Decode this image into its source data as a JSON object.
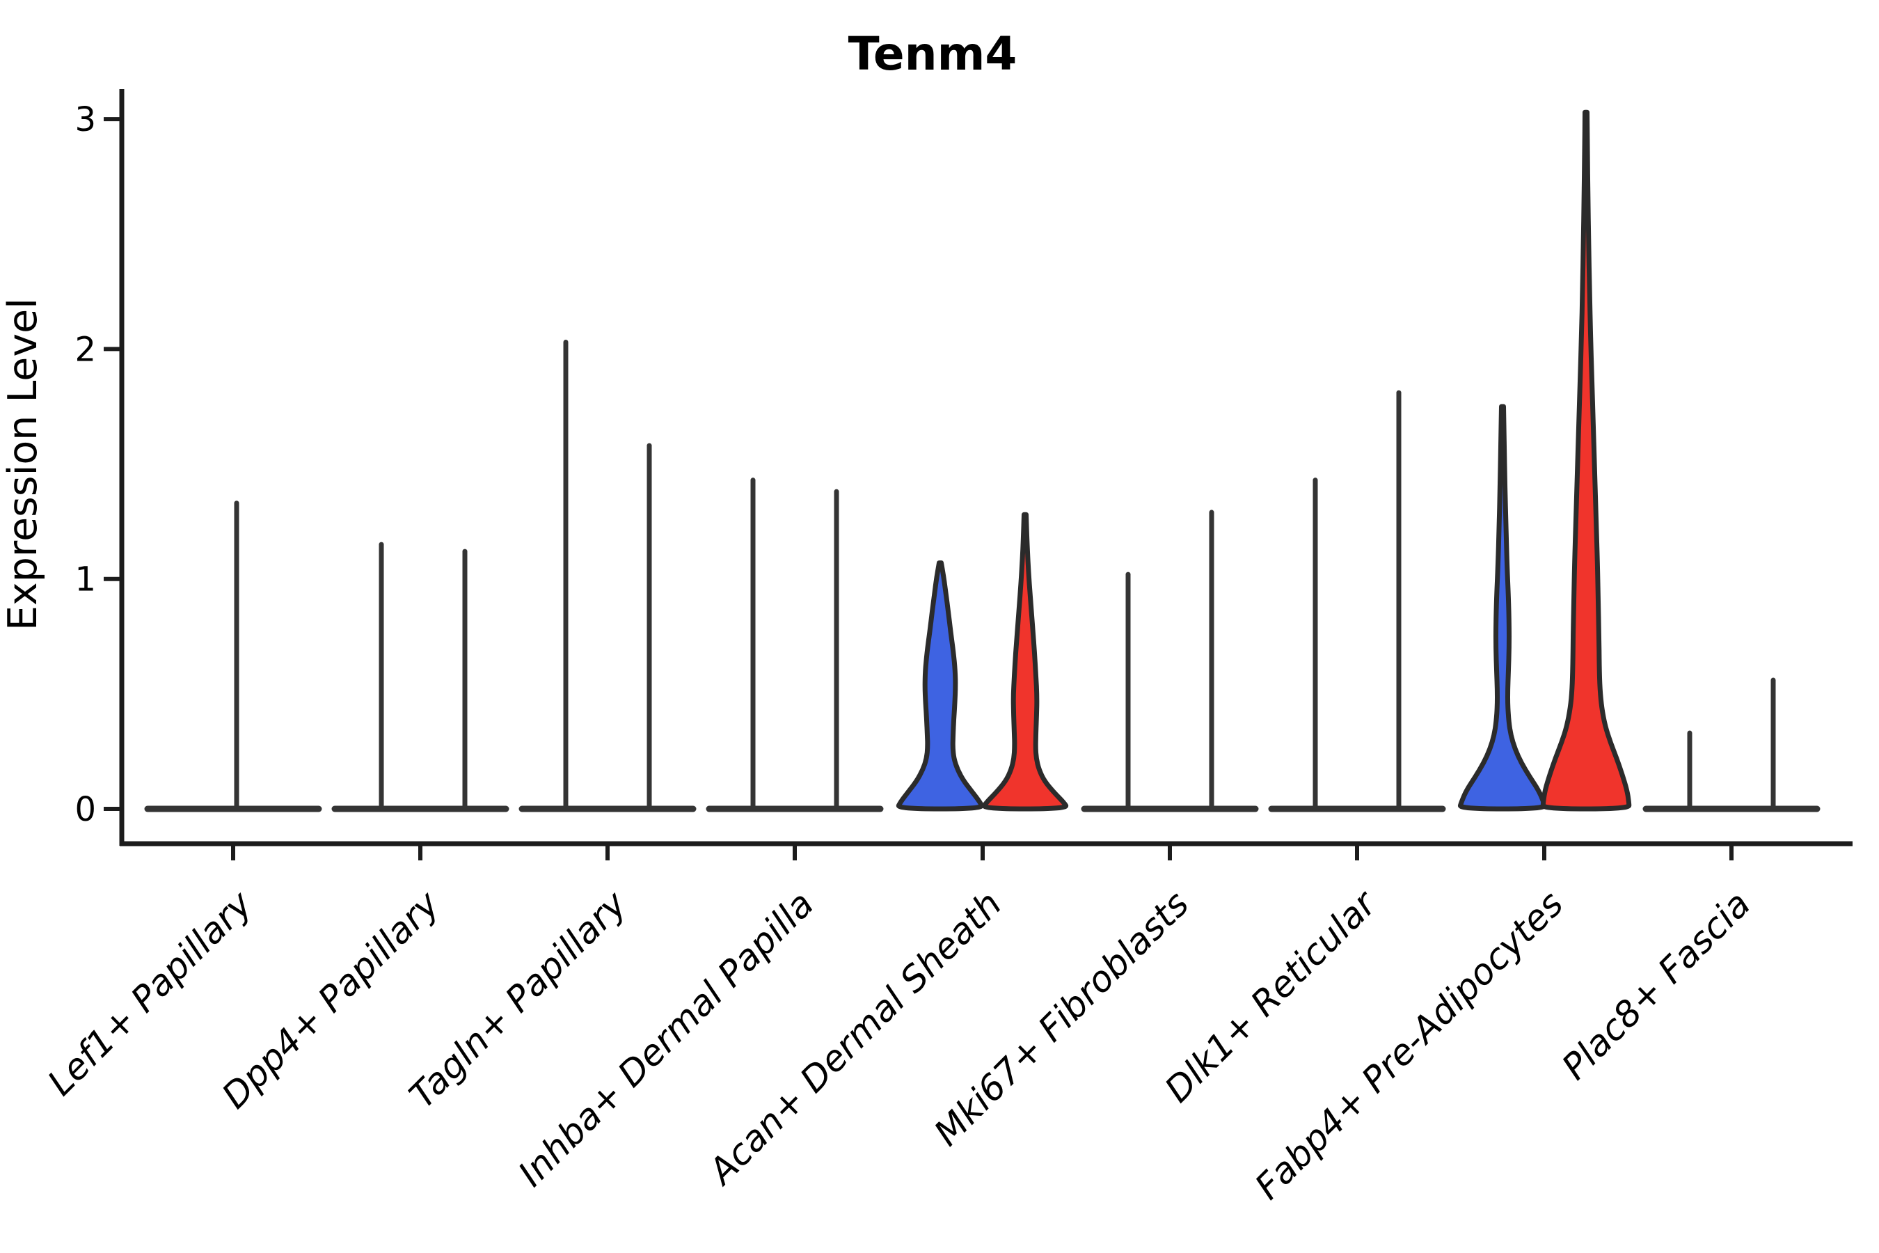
{
  "page": {
    "background": "#FFFFFF"
  },
  "chart_data": {
    "type": "violin",
    "title": "Tenm4",
    "ylabel": "Expression Level",
    "xlabel": "",
    "ylim": [
      0,
      3.2
    ],
    "yticks": [
      0,
      1,
      2,
      3
    ],
    "grid": false,
    "legend": "none",
    "split_colors": {
      "blue": "#3E63E2",
      "red": "#F0342C"
    },
    "categories": [
      {
        "label": "Lef1+ Papillary",
        "x": 335,
        "violins": [
          {
            "hue": "none",
            "x": 340,
            "max": 1.33,
            "filled": false
          }
        ]
      },
      {
        "label": "Dpp4+ Papillary",
        "x": 604,
        "violins": [
          {
            "hue": "blue",
            "x": 548,
            "max": 1.15,
            "filled": false
          },
          {
            "hue": "red",
            "x": 668,
            "max": 1.12,
            "filled": false
          }
        ]
      },
      {
        "label": "Tagln+ Papillary",
        "x": 873,
        "violins": [
          {
            "hue": "blue",
            "x": 813,
            "max": 2.03,
            "filled": false
          },
          {
            "hue": "red",
            "x": 933,
            "max": 1.58,
            "filled": false
          }
        ]
      },
      {
        "label": "Inhba+ Dermal Papilla",
        "x": 1142,
        "violins": [
          {
            "hue": "blue",
            "x": 1082,
            "max": 1.43,
            "filled": false
          },
          {
            "hue": "red",
            "x": 1202,
            "max": 1.38,
            "filled": false
          }
        ]
      },
      {
        "label": "Acan+ Dermal Sheath",
        "x": 1412,
        "violins": [
          {
            "hue": "blue",
            "x": 1351,
            "max": 1.07,
            "filled": true,
            "profile": [
              [
                1.07,
                1.5
              ],
              [
                1.01,
                5
              ],
              [
                0.94,
                8
              ],
              [
                0.86,
                11.5
              ],
              [
                0.77,
                15
              ],
              [
                0.68,
                19
              ],
              [
                0.6,
                21.5
              ],
              [
                0.53,
                22
              ],
              [
                0.46,
                21
              ],
              [
                0.39,
                19.5
              ],
              [
                0.32,
                18.5
              ],
              [
                0.27,
                18
              ],
              [
                0.22,
                19.5
              ],
              [
                0.17,
                25
              ],
              [
                0.12,
                34
              ],
              [
                0.07,
                47
              ],
              [
                0.03,
                57
              ],
              [
                0.0,
                62
              ]
            ]
          },
          {
            "hue": "red",
            "x": 1473,
            "max": 1.28,
            "filled": true,
            "profile": [
              [
                1.28,
                1.5
              ],
              [
                1.18,
                2.5
              ],
              [
                1.08,
                4
              ],
              [
                0.98,
                6
              ],
              [
                0.88,
                8.5
              ],
              [
                0.78,
                11
              ],
              [
                0.68,
                13.5
              ],
              [
                0.58,
                15.5
              ],
              [
                0.49,
                17
              ],
              [
                0.41,
                16.5
              ],
              [
                0.33,
                15.5
              ],
              [
                0.27,
                15
              ],
              [
                0.22,
                16
              ],
              [
                0.17,
                20
              ],
              [
                0.12,
                28
              ],
              [
                0.07,
                42
              ],
              [
                0.03,
                55
              ],
              [
                0.0,
                62
              ]
            ]
          }
        ]
      },
      {
        "label": "Mki67+ Fibroblasts",
        "x": 1681,
        "violins": [
          {
            "hue": "blue",
            "x": 1621,
            "max": 1.02,
            "filled": false
          },
          {
            "hue": "red",
            "x": 1741,
            "max": 1.29,
            "filled": false
          }
        ]
      },
      {
        "label": "Dlk1+ Reticular",
        "x": 1950,
        "violins": [
          {
            "hue": "blue",
            "x": 1890,
            "max": 1.43,
            "filled": false
          },
          {
            "hue": "red",
            "x": 2010,
            "max": 1.81,
            "filled": false
          }
        ]
      },
      {
        "label": "Fabp4+ Pre-Adipocytes",
        "x": 2219,
        "violins": [
          {
            "hue": "blue",
            "x": 2159,
            "max": 1.75,
            "filled": true,
            "profile": [
              [
                1.75,
                1.5
              ],
              [
                1.58,
                2.5
              ],
              [
                1.4,
                3.5
              ],
              [
                1.22,
                5
              ],
              [
                1.06,
                6.5
              ],
              [
                0.92,
                8.5
              ],
              [
                0.8,
                9.5
              ],
              [
                0.7,
                9.5
              ],
              [
                0.6,
                8.5
              ],
              [
                0.52,
                7.5
              ],
              [
                0.45,
                7.5
              ],
              [
                0.38,
                9
              ],
              [
                0.32,
                12
              ],
              [
                0.26,
                18
              ],
              [
                0.2,
                27
              ],
              [
                0.14,
                39
              ],
              [
                0.08,
                52
              ],
              [
                0.03,
                59
              ],
              [
                0.0,
                62
              ]
            ]
          },
          {
            "hue": "red",
            "x": 2279,
            "max": 3.03,
            "filled": true,
            "profile": [
              [
                3.03,
                1.5
              ],
              [
                2.86,
                2
              ],
              [
                2.66,
                2.8
              ],
              [
                2.46,
                3.8
              ],
              [
                2.26,
                5
              ],
              [
                2.06,
                6.5
              ],
              [
                1.86,
                8.5
              ],
              [
                1.66,
                10.5
              ],
              [
                1.46,
                12.5
              ],
              [
                1.26,
                14.5
              ],
              [
                1.06,
                16.5
              ],
              [
                0.9,
                17.5
              ],
              [
                0.76,
                18.5
              ],
              [
                0.62,
                19
              ],
              [
                0.52,
                20
              ],
              [
                0.44,
                22.5
              ],
              [
                0.36,
                27.5
              ],
              [
                0.29,
                35
              ],
              [
                0.22,
                44
              ],
              [
                0.15,
                52
              ],
              [
                0.08,
                59
              ],
              [
                0.03,
                61.5
              ],
              [
                0.0,
                62
              ]
            ]
          }
        ]
      },
      {
        "label": "Plac8+ Fascia",
        "x": 2488,
        "violins": [
          {
            "hue": "blue",
            "x": 2428,
            "max": 0.33,
            "filled": false
          },
          {
            "hue": "red",
            "x": 2548,
            "max": 0.56,
            "filled": false
          }
        ]
      }
    ]
  },
  "style": {
    "edge_color": "#2B2B2B",
    "violin_line_color": "#343434",
    "axis_color": "#1C1C1C",
    "baseline_halfwidth": 123
  }
}
